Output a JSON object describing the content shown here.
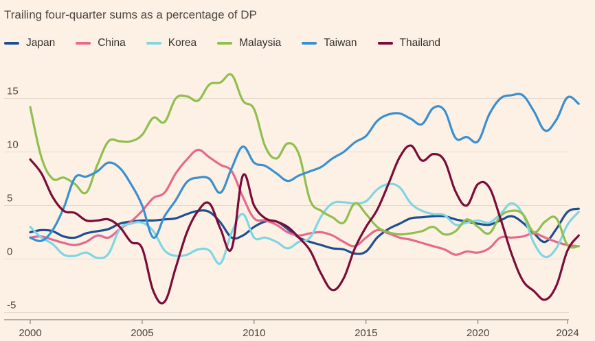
{
  "chart_data": {
    "type": "line",
    "subtitle": "Trailing four-quarter sums as a percentage of DP",
    "x_ticks": [
      "2000",
      "2005",
      "2010",
      "2015",
      "2020",
      "2024"
    ],
    "y_ticks": [
      "15",
      "10",
      "5",
      "0",
      "-5"
    ],
    "xlim": [
      2000,
      2024.7
    ],
    "ylim": [
      -5.5,
      18
    ],
    "grid": "horizontal",
    "legend_position": "top",
    "series": [
      {
        "name": "Japan",
        "color": "#1d4f91",
        "points": [
          [
            2000,
            2.5
          ],
          [
            2000.5,
            2.7
          ],
          [
            2001,
            2.6
          ],
          [
            2001.5,
            2.1
          ],
          [
            2002,
            2.0
          ],
          [
            2002.5,
            2.4
          ],
          [
            2003,
            2.6
          ],
          [
            2003.5,
            2.8
          ],
          [
            2004,
            3.3
          ],
          [
            2004.5,
            3.5
          ],
          [
            2005,
            3.6
          ],
          [
            2005.5,
            3.6
          ],
          [
            2006,
            3.7
          ],
          [
            2006.5,
            3.8
          ],
          [
            2007,
            4.2
          ],
          [
            2007.5,
            4.5
          ],
          [
            2008,
            4.4
          ],
          [
            2008.5,
            3.4
          ],
          [
            2009,
            2.0
          ],
          [
            2009.5,
            2.2
          ],
          [
            2010,
            3.0
          ],
          [
            2010.5,
            3.5
          ],
          [
            2011,
            3.5
          ],
          [
            2011.5,
            2.8
          ],
          [
            2012,
            2.0
          ],
          [
            2012.5,
            1.6
          ],
          [
            2013,
            1.3
          ],
          [
            2013.5,
            1.0
          ],
          [
            2014,
            0.9
          ],
          [
            2014.5,
            0.5
          ],
          [
            2015,
            0.7
          ],
          [
            2015.5,
            2.0
          ],
          [
            2016,
            2.8
          ],
          [
            2016.5,
            3.3
          ],
          [
            2017,
            3.8
          ],
          [
            2017.5,
            3.9
          ],
          [
            2018,
            4.0
          ],
          [
            2018.5,
            4.0
          ],
          [
            2019,
            3.7
          ],
          [
            2019.5,
            3.5
          ],
          [
            2020,
            3.3
          ],
          [
            2020.5,
            3.2
          ],
          [
            2021,
            3.6
          ],
          [
            2021.5,
            4.0
          ],
          [
            2022,
            3.4
          ],
          [
            2022.5,
            2.4
          ],
          [
            2023,
            1.6
          ],
          [
            2023.5,
            2.8
          ],
          [
            2024,
            4.4
          ],
          [
            2024.5,
            4.7
          ]
        ]
      },
      {
        "name": "China",
        "color": "#e5698a",
        "points": [
          [
            2000,
            2.0
          ],
          [
            2000.5,
            2.1
          ],
          [
            2001,
            1.8
          ],
          [
            2001.5,
            1.5
          ],
          [
            2002,
            1.3
          ],
          [
            2002.5,
            1.6
          ],
          [
            2003,
            2.2
          ],
          [
            2003.5,
            2.0
          ],
          [
            2004,
            2.8
          ],
          [
            2004.5,
            3.5
          ],
          [
            2005,
            4.5
          ],
          [
            2005.5,
            5.7
          ],
          [
            2006,
            6.2
          ],
          [
            2006.5,
            8.0
          ],
          [
            2007,
            9.3
          ],
          [
            2007.5,
            10.2
          ],
          [
            2008,
            9.5
          ],
          [
            2008.5,
            8.8
          ],
          [
            2009,
            8.2
          ],
          [
            2009.5,
            5.8
          ],
          [
            2010,
            3.8
          ],
          [
            2010.5,
            3.6
          ],
          [
            2011,
            3.2
          ],
          [
            2011.5,
            2.5
          ],
          [
            2012,
            2.2
          ],
          [
            2012.5,
            2.4
          ],
          [
            2013,
            2.5
          ],
          [
            2013.5,
            2.2
          ],
          [
            2014,
            1.6
          ],
          [
            2014.5,
            1.2
          ],
          [
            2015,
            2.0
          ],
          [
            2015.5,
            2.7
          ],
          [
            2016,
            2.4
          ],
          [
            2016.5,
            2.0
          ],
          [
            2017,
            1.8
          ],
          [
            2017.5,
            1.5
          ],
          [
            2018,
            1.2
          ],
          [
            2018.5,
            0.9
          ],
          [
            2019,
            0.4
          ],
          [
            2019.5,
            0.7
          ],
          [
            2020,
            0.6
          ],
          [
            2020.5,
            1.0
          ],
          [
            2021,
            2.0
          ],
          [
            2021.5,
            2.0
          ],
          [
            2022,
            2.1
          ],
          [
            2022.5,
            2.4
          ],
          [
            2023,
            2.0
          ],
          [
            2023.5,
            1.6
          ],
          [
            2024,
            1.3
          ],
          [
            2024.5,
            1.2
          ]
        ]
      },
      {
        "name": "Korea",
        "color": "#7fd6e3",
        "points": [
          [
            2000,
            3.0
          ],
          [
            2000.5,
            2.0
          ],
          [
            2001,
            1.4
          ],
          [
            2001.5,
            0.4
          ],
          [
            2002,
            0.3
          ],
          [
            2002.5,
            0.6
          ],
          [
            2003,
            0.1
          ],
          [
            2003.5,
            0.5
          ],
          [
            2004,
            2.8
          ],
          [
            2004.5,
            3.3
          ],
          [
            2005,
            3.4
          ],
          [
            2005.5,
            2.6
          ],
          [
            2006,
            0.8
          ],
          [
            2006.5,
            0.3
          ],
          [
            2007,
            0.4
          ],
          [
            2007.5,
            0.9
          ],
          [
            2008,
            0.8
          ],
          [
            2008.5,
            -0.4
          ],
          [
            2009,
            2.5
          ],
          [
            2009.5,
            4.2
          ],
          [
            2010,
            2.0
          ],
          [
            2010.5,
            2.0
          ],
          [
            2011,
            1.6
          ],
          [
            2011.5,
            1.0
          ],
          [
            2012,
            1.6
          ],
          [
            2012.5,
            2.0
          ],
          [
            2013,
            4.0
          ],
          [
            2013.5,
            5.2
          ],
          [
            2014,
            5.3
          ],
          [
            2014.5,
            5.2
          ],
          [
            2015,
            5.4
          ],
          [
            2015.5,
            6.5
          ],
          [
            2016,
            7.0
          ],
          [
            2016.5,
            6.7
          ],
          [
            2017,
            5.2
          ],
          [
            2017.5,
            4.5
          ],
          [
            2018,
            4.2
          ],
          [
            2018.5,
            4.1
          ],
          [
            2019,
            3.2
          ],
          [
            2019.5,
            3.4
          ],
          [
            2020,
            3.6
          ],
          [
            2020.5,
            3.4
          ],
          [
            2021,
            4.2
          ],
          [
            2021.5,
            5.2
          ],
          [
            2022,
            4.2
          ],
          [
            2022.5,
            1.5
          ],
          [
            2023,
            0.2
          ],
          [
            2023.5,
            1.0
          ],
          [
            2024,
            3.2
          ],
          [
            2024.5,
            4.4
          ]
        ]
      },
      {
        "name": "Malaysia",
        "color": "#8fbf4d",
        "points": [
          [
            2000,
            14.2
          ],
          [
            2000.5,
            9.5
          ],
          [
            2001,
            7.5
          ],
          [
            2001.5,
            7.6
          ],
          [
            2002,
            7.0
          ],
          [
            2002.5,
            6.2
          ],
          [
            2003,
            8.8
          ],
          [
            2003.5,
            11.0
          ],
          [
            2004,
            11.0
          ],
          [
            2004.5,
            11.0
          ],
          [
            2005,
            11.6
          ],
          [
            2005.5,
            13.2
          ],
          [
            2006,
            12.8
          ],
          [
            2006.5,
            15.0
          ],
          [
            2007,
            15.2
          ],
          [
            2007.5,
            14.8
          ],
          [
            2008,
            16.3
          ],
          [
            2008.5,
            16.5
          ],
          [
            2009,
            17.2
          ],
          [
            2009.5,
            14.8
          ],
          [
            2010,
            14.0
          ],
          [
            2010.5,
            10.5
          ],
          [
            2011,
            9.4
          ],
          [
            2011.5,
            10.8
          ],
          [
            2012,
            9.8
          ],
          [
            2012.5,
            5.5
          ],
          [
            2013,
            4.5
          ],
          [
            2013.5,
            3.9
          ],
          [
            2014,
            3.4
          ],
          [
            2014.5,
            5.2
          ],
          [
            2015,
            4.2
          ],
          [
            2015.5,
            3.0
          ],
          [
            2016,
            2.5
          ],
          [
            2016.5,
            2.3
          ],
          [
            2017,
            2.4
          ],
          [
            2017.5,
            2.6
          ],
          [
            2018,
            3.0
          ],
          [
            2018.5,
            2.3
          ],
          [
            2019,
            2.6
          ],
          [
            2019.5,
            3.7
          ],
          [
            2020,
            3.0
          ],
          [
            2020.5,
            2.4
          ],
          [
            2021,
            4.0
          ],
          [
            2021.5,
            4.5
          ],
          [
            2022,
            4.2
          ],
          [
            2022.5,
            2.5
          ],
          [
            2023,
            3.5
          ],
          [
            2023.5,
            3.8
          ],
          [
            2024,
            1.3
          ],
          [
            2024.5,
            1.2
          ]
        ]
      },
      {
        "name": "Taiwan",
        "color": "#3a8fd0",
        "points": [
          [
            2000,
            2.0
          ],
          [
            2000.5,
            1.7
          ],
          [
            2001,
            2.7
          ],
          [
            2001.5,
            4.8
          ],
          [
            2002,
            7.6
          ],
          [
            2002.5,
            7.7
          ],
          [
            2003,
            8.2
          ],
          [
            2003.5,
            9.0
          ],
          [
            2004,
            8.5
          ],
          [
            2004.5,
            7.0
          ],
          [
            2005,
            5.0
          ],
          [
            2005.5,
            2.0
          ],
          [
            2006,
            4.0
          ],
          [
            2006.5,
            5.5
          ],
          [
            2007,
            7.2
          ],
          [
            2007.5,
            7.6
          ],
          [
            2008,
            7.5
          ],
          [
            2008.5,
            6.2
          ],
          [
            2009,
            8.5
          ],
          [
            2009.5,
            10.5
          ],
          [
            2010,
            9.0
          ],
          [
            2010.5,
            8.7
          ],
          [
            2011,
            8.0
          ],
          [
            2011.5,
            7.3
          ],
          [
            2012,
            7.8
          ],
          [
            2012.5,
            8.2
          ],
          [
            2013,
            8.6
          ],
          [
            2013.5,
            9.4
          ],
          [
            2014,
            10.0
          ],
          [
            2014.5,
            10.9
          ],
          [
            2015,
            11.5
          ],
          [
            2015.5,
            12.9
          ],
          [
            2016,
            13.5
          ],
          [
            2016.5,
            13.6
          ],
          [
            2017,
            13.1
          ],
          [
            2017.5,
            12.6
          ],
          [
            2018,
            14.1
          ],
          [
            2018.5,
            13.9
          ],
          [
            2019,
            11.3
          ],
          [
            2019.5,
            11.4
          ],
          [
            2020,
            11.0
          ],
          [
            2020.5,
            13.5
          ],
          [
            2021,
            15.0
          ],
          [
            2021.5,
            15.3
          ],
          [
            2022,
            15.3
          ],
          [
            2022.5,
            13.8
          ],
          [
            2023,
            12.0
          ],
          [
            2023.5,
            13.0
          ],
          [
            2024,
            15.1
          ],
          [
            2024.5,
            14.5
          ]
        ]
      },
      {
        "name": "Thailand",
        "color": "#7a0c3a",
        "points": [
          [
            2000,
            9.3
          ],
          [
            2000.5,
            8.0
          ],
          [
            2001,
            5.8
          ],
          [
            2001.5,
            4.5
          ],
          [
            2002,
            4.3
          ],
          [
            2002.5,
            3.6
          ],
          [
            2003,
            3.6
          ],
          [
            2003.5,
            3.7
          ],
          [
            2004,
            3.0
          ],
          [
            2004.5,
            1.6
          ],
          [
            2005,
            1.0
          ],
          [
            2005.5,
            -3.0
          ],
          [
            2006,
            -4.0
          ],
          [
            2006.5,
            -0.8
          ],
          [
            2007,
            2.5
          ],
          [
            2007.5,
            4.5
          ],
          [
            2008,
            5.2
          ],
          [
            2008.5,
            2.8
          ],
          [
            2009,
            1.0
          ],
          [
            2009.5,
            7.8
          ],
          [
            2010,
            5.0
          ],
          [
            2010.5,
            3.8
          ],
          [
            2011,
            3.5
          ],
          [
            2011.5,
            3.0
          ],
          [
            2012,
            2.0
          ],
          [
            2012.5,
            0.8
          ],
          [
            2013,
            -1.4
          ],
          [
            2013.5,
            -2.9
          ],
          [
            2014,
            -1.8
          ],
          [
            2014.5,
            1.0
          ],
          [
            2015,
            3.0
          ],
          [
            2015.5,
            4.6
          ],
          [
            2016,
            7.0
          ],
          [
            2016.5,
            9.5
          ],
          [
            2017,
            10.6
          ],
          [
            2017.5,
            9.2
          ],
          [
            2018,
            9.8
          ],
          [
            2018.5,
            9.2
          ],
          [
            2019,
            6.3
          ],
          [
            2019.5,
            5.0
          ],
          [
            2020,
            7.0
          ],
          [
            2020.5,
            6.7
          ],
          [
            2021,
            3.8
          ],
          [
            2021.5,
            0.5
          ],
          [
            2022,
            -2.0
          ],
          [
            2022.5,
            -3.0
          ],
          [
            2023,
            -3.8
          ],
          [
            2023.5,
            -2.5
          ],
          [
            2024,
            0.8
          ],
          [
            2024.5,
            2.2
          ]
        ]
      }
    ]
  }
}
